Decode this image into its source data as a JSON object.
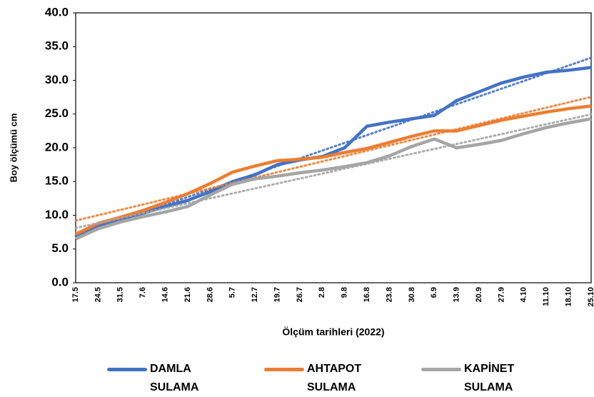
{
  "chart_data": {
    "type": "line",
    "y_label": "Boy ölçümü cm",
    "x_label": "Ölçüm tarihleri (2022)",
    "categories": [
      "17.5",
      "24.5",
      "31.5",
      "7.6",
      "14.6",
      "21.6",
      "28.6",
      "5.7",
      "12.7",
      "19.7",
      "26.7",
      "2.8",
      "9.8",
      "16.8",
      "23.8",
      "30.8",
      "6.9",
      "13.9",
      "20.9",
      "27.9",
      "4.10",
      "11.10",
      "18.10",
      "25.10"
    ],
    "series": [
      {
        "name": "DAMLA SULAMA",
        "color": "#4472c4",
        "values": [
          7.0,
          8.5,
          9.5,
          10.3,
          11.3,
          12.2,
          13.5,
          15.0,
          16.0,
          17.5,
          18.2,
          18.7,
          20.0,
          23.2,
          23.8,
          24.3,
          24.8,
          27.0,
          28.3,
          29.6,
          30.5,
          31.2,
          31.5,
          31.9
        ]
      },
      {
        "name": "AHTAPOT SULAMA",
        "color": "#ed7d31",
        "values": [
          7.2,
          8.8,
          9.7,
          10.7,
          11.9,
          13.2,
          14.7,
          16.4,
          17.3,
          18.1,
          18.3,
          18.6,
          19.3,
          19.9,
          20.8,
          21.7,
          22.5,
          22.5,
          23.3,
          24.1,
          24.7,
          25.3,
          25.8,
          26.2
        ]
      },
      {
        "name": "KAPİNET SULAMA",
        "color": "#a5a5a5",
        "values": [
          6.5,
          8.0,
          9.0,
          9.8,
          10.5,
          11.3,
          13.0,
          14.6,
          15.4,
          15.8,
          16.3,
          16.7,
          17.2,
          17.8,
          18.8,
          20.2,
          21.3,
          20.0,
          20.5,
          21.1,
          22.1,
          23.0,
          23.7,
          24.3
        ]
      }
    ],
    "trendline": "linear",
    "ylim": [
      0,
      40
    ],
    "yticks": [
      {
        "value": 0,
        "label": "0.0"
      },
      {
        "value": 5,
        "label": "5.0"
      },
      {
        "value": 10,
        "label": "10.0"
      },
      {
        "value": 15,
        "label": "15.0"
      },
      {
        "value": 20,
        "label": "20.0"
      },
      {
        "value": 25,
        "label": "25.0"
      },
      {
        "value": 30,
        "label": "30.0"
      },
      {
        "value": 35,
        "label": "35.0"
      },
      {
        "value": 40,
        "label": "40.0"
      }
    ],
    "grid": false,
    "legend": "bottom"
  }
}
